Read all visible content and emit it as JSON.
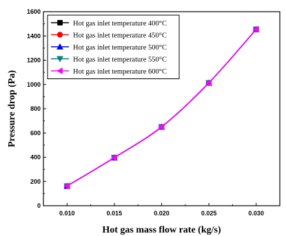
{
  "chart_data": {
    "type": "line",
    "xlabel": "Hot gas mass flow rate (kg/s)",
    "ylabel": "Pressure drop (Pa)",
    "xlim": [
      0.0075,
      0.0325
    ],
    "ylim": [
      0,
      1600
    ],
    "xticks": [
      "0.010",
      "0.015",
      "0.020",
      "0.025",
      "0.030"
    ],
    "yticks": [
      "0",
      "200",
      "400",
      "600",
      "800",
      "1000",
      "1200",
      "1400",
      "1600"
    ],
    "x": [
      0.01,
      0.015,
      0.02,
      0.025,
      0.03
    ],
    "legend_position": "top-left",
    "grid": false,
    "series": [
      {
        "name": "Hot gas inlet temperature 400°C",
        "color": "#000000",
        "marker": "square",
        "values": [
          162,
          396,
          650,
          1013,
          1454
        ]
      },
      {
        "name": "Hot gas inlet temperature 450°C",
        "color": "#ff0000",
        "marker": "circle",
        "values": [
          162,
          396,
          650,
          1013,
          1454
        ]
      },
      {
        "name": "Hot gas inlet temperature 500°C",
        "color": "#0000ff",
        "marker": "triangle-up",
        "values": [
          162,
          396,
          650,
          1013,
          1454
        ]
      },
      {
        "name": "Hot gas inlet temperature 550°C",
        "color": "#008080",
        "marker": "triangle-down",
        "values": [
          162,
          396,
          650,
          1013,
          1454
        ]
      },
      {
        "name": "Hot gas inlet temperature 600°C",
        "color": "#ff00ff",
        "marker": "triangle-left",
        "values": [
          162,
          396,
          650,
          1013,
          1454
        ]
      }
    ]
  }
}
